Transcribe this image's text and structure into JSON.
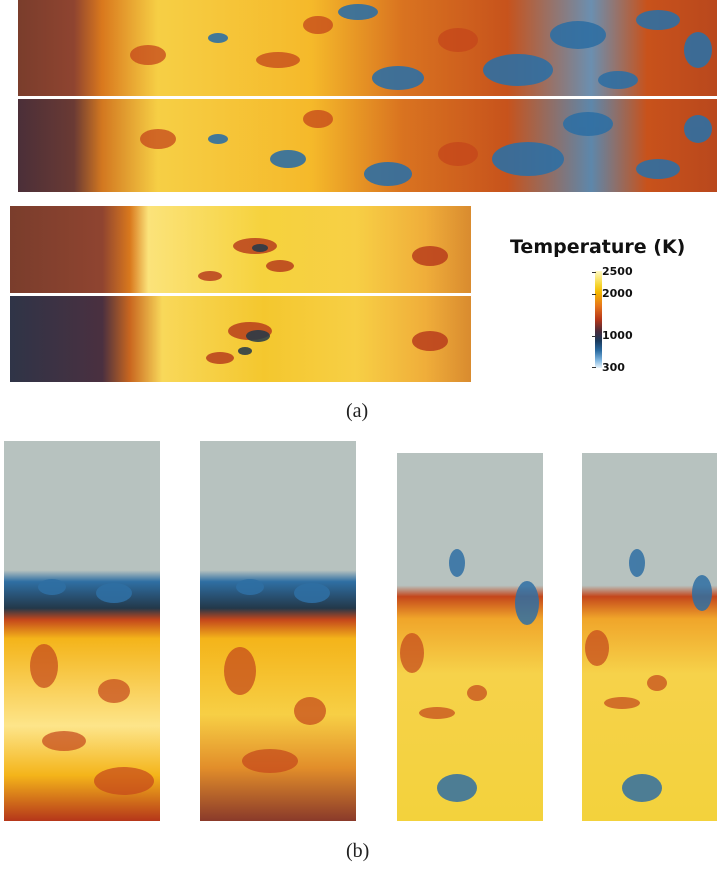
{
  "figure": {
    "caption_a": "(a)",
    "caption_b": "(b)"
  },
  "colorbar": {
    "title": "Temperature (K)",
    "ticks": [
      "2500",
      "2000",
      "1000",
      "300"
    ],
    "range": [
      300,
      2500
    ],
    "colormap": [
      "#eaf4fb",
      "#2a6aa0",
      "#1a3a5c",
      "#b5361a",
      "#e6751c",
      "#f4b800",
      "#fff9c4"
    ]
  },
  "colors": {
    "ambient": "#b7c2bf",
    "cold": "#2f6fa3",
    "dark": "#23384a",
    "mid": "#c4461b",
    "hot": "#f4b41a",
    "hottest": "#fde58a",
    "preflame": "#8a4330"
  }
}
